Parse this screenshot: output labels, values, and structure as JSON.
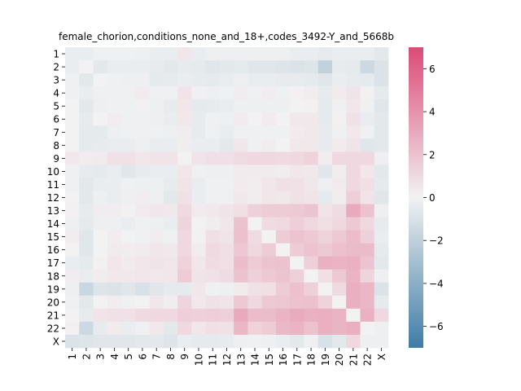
{
  "chart_data": {
    "type": "heatmap",
    "title": "female_chorion,conditions_none_and_18+,codes_3492-Y_and_5668b",
    "xlabel": "",
    "ylabel": "",
    "row_labels": [
      "1",
      "2",
      "3",
      "4",
      "5",
      "6",
      "7",
      "8",
      "9",
      "10",
      "11",
      "12",
      "13",
      "14",
      "15",
      "16",
      "17",
      "18",
      "19",
      "20",
      "21",
      "22",
      "X"
    ],
    "col_labels": [
      "1",
      "2",
      "3",
      "4",
      "5",
      "6",
      "7",
      "8",
      "9",
      "10",
      "11",
      "12",
      "13",
      "14",
      "15",
      "16",
      "17",
      "18",
      "19",
      "20",
      "21",
      "22",
      "X"
    ],
    "values": [
      [
        -0.3,
        -0.3,
        -0.1,
        -0.1,
        -0.1,
        -0.2,
        -0.3,
        -0.3,
        0.5,
        -0.3,
        -0.2,
        -0.2,
        -0.2,
        -0.2,
        -0.2,
        -0.2,
        -0.3,
        -0.3,
        -0.4,
        -0.3,
        -0.3,
        -0.3,
        -0.6
      ],
      [
        -0.3,
        0.0,
        -0.6,
        -0.3,
        -0.3,
        -0.3,
        -0.4,
        -0.6,
        -0.4,
        -0.5,
        -0.7,
        -0.6,
        -0.5,
        -0.7,
        -0.7,
        -0.8,
        -0.9,
        -0.8,
        -1.9,
        -0.4,
        -0.5,
        -1.5,
        -0.9
      ],
      [
        -0.1,
        -0.6,
        0.0,
        -0.1,
        -0.2,
        -0.2,
        -0.5,
        -0.4,
        -0.3,
        -0.4,
        -0.5,
        -0.3,
        -0.2,
        -0.3,
        -0.3,
        -0.4,
        -0.4,
        -0.5,
        -0.7,
        -0.3,
        -0.4,
        -0.5,
        -0.9
      ],
      [
        -0.1,
        -0.3,
        -0.1,
        -0.1,
        -0.1,
        0.3,
        -0.1,
        -0.1,
        0.6,
        -0.1,
        -0.2,
        -0.1,
        0.2,
        -0.1,
        0.2,
        -0.1,
        0.1,
        0.2,
        -0.4,
        0.3,
        0.6,
        0.1,
        -0.5
      ],
      [
        0.0,
        -0.6,
        -0.2,
        -0.1,
        -0.1,
        0.1,
        -0.2,
        -0.4,
        0.5,
        -0.5,
        -0.4,
        -0.3,
        -0.2,
        -0.2,
        -0.2,
        -0.2,
        0.0,
        0.1,
        -0.5,
        -0.1,
        0.5,
        -0.1,
        -0.7
      ],
      [
        0.0,
        -0.4,
        0.0,
        0.2,
        -0.1,
        -0.1,
        -0.2,
        -0.3,
        0.4,
        -0.4,
        -0.1,
        -0.2,
        0.3,
        0.0,
        0.3,
        0.0,
        0.4,
        0.4,
        -0.5,
        0.1,
        0.7,
        -0.3,
        -0.6
      ],
      [
        0.0,
        -0.5,
        -0.5,
        -0.2,
        -0.1,
        -0.1,
        -0.1,
        -0.2,
        0.2,
        -0.4,
        -0.1,
        -0.3,
        -0.1,
        -0.1,
        -0.1,
        -0.1,
        0.3,
        0.4,
        -0.4,
        -0.1,
        0.4,
        -0.1,
        -0.6
      ],
      [
        0.0,
        -0.5,
        -0.4,
        -0.3,
        -0.3,
        -0.2,
        -0.3,
        -0.3,
        0.2,
        -0.3,
        -0.3,
        -0.6,
        0.5,
        -0.1,
        0.2,
        0.0,
        0.4,
        0.4,
        -0.4,
        0.3,
        0.6,
        -0.7,
        -0.6
      ],
      [
        0.4,
        0.2,
        0.3,
        0.7,
        0.7,
        0.5,
        0.6,
        0.6,
        0.0,
        0.6,
        0.8,
        0.8,
        0.9,
        1.1,
        1.1,
        1.0,
        1.1,
        1.3,
        0.2,
        1.1,
        1.1,
        1.1,
        -0.2
      ],
      [
        -0.1,
        -0.4,
        -0.5,
        -0.3,
        -0.7,
        -0.4,
        -0.3,
        -0.3,
        0.5,
        -0.1,
        -0.2,
        -0.2,
        0.3,
        0.3,
        0.3,
        0.2,
        0.5,
        0.4,
        -0.7,
        0.2,
        1.1,
        0.5,
        -0.6
      ],
      [
        -0.1,
        -0.6,
        -0.3,
        -0.3,
        -0.1,
        -0.2,
        -0.2,
        -0.4,
        0.6,
        -0.3,
        -0.1,
        -0.1,
        0.3,
        0.2,
        0.5,
        0.8,
        0.7,
        0.5,
        -0.2,
        0.3,
        1.1,
        0.8,
        -0.5
      ],
      [
        0.0,
        -0.6,
        -0.2,
        -0.3,
        -0.2,
        0.2,
        -0.2,
        -0.6,
        0.7,
        -0.3,
        -0.1,
        -0.1,
        0.4,
        0.2,
        0.5,
        0.4,
        0.7,
        0.6,
        -0.5,
        0.2,
        1.5,
        0.6,
        -0.7
      ],
      [
        0.1,
        -0.4,
        0.2,
        0.2,
        0.1,
        0.3,
        0.5,
        0.4,
        1.0,
        0.3,
        0.4,
        0.6,
        0.8,
        1.4,
        1.6,
        1.6,
        1.7,
        1.9,
        0.6,
        0.9,
        3.0,
        2.0,
        -0.2
      ],
      [
        -0.2,
        -0.5,
        -0.2,
        -0.2,
        -0.3,
        -0.1,
        -0.2,
        -0.3,
        1.2,
        0.0,
        0.2,
        0.5,
        2.0,
        0.0,
        0.9,
        1.0,
        1.5,
        1.1,
        0.8,
        1.1,
        1.7,
        1.1,
        -0.4
      ],
      [
        0.2,
        -0.7,
        0.0,
        0.2,
        0.0,
        -0.1,
        0.2,
        -0.1,
        1.1,
        0.1,
        0.8,
        0.6,
        2.1,
        0.9,
        0.0,
        1.6,
        1.9,
        1.7,
        1.3,
        1.7,
        2.2,
        1.4,
        -0.3
      ],
      [
        0.0,
        -0.7,
        0.0,
        0.3,
        0.2,
        0.3,
        0.5,
        0.4,
        1.1,
        0.2,
        1.0,
        0.8,
        1.8,
        1.1,
        1.6,
        0.0,
        1.6,
        1.9,
        1.7,
        2.1,
        2.3,
        2.3,
        -0.5
      ],
      [
        -0.3,
        -0.5,
        0.1,
        0.5,
        0.3,
        0.5,
        0.6,
        0.5,
        1.3,
        0.5,
        0.9,
        0.8,
        2.2,
        1.6,
        1.9,
        2.0,
        0.0,
        1.4,
        2.7,
        2.6,
        2.7,
        1.9,
        -0.6
      ],
      [
        0.2,
        -0.3,
        0.2,
        0.4,
        0.4,
        0.5,
        0.4,
        0.5,
        1.6,
        0.6,
        0.7,
        0.9,
        2.0,
        1.4,
        1.7,
        1.9,
        1.4,
        0.0,
        0.8,
        1.7,
        2.6,
        1.2,
        -0.2
      ],
      [
        -0.2,
        -1.6,
        -0.8,
        -0.9,
        -0.7,
        -1.0,
        -0.7,
        -0.5,
        -0.5,
        0.5,
        -0.1,
        -0.2,
        0.3,
        0.7,
        0.8,
        1.6,
        2.1,
        1.4,
        0.0,
        1.0,
        2.8,
        2.5,
        -0.9
      ],
      [
        -0.1,
        -0.6,
        0.0,
        0.2,
        -0.1,
        0.0,
        0.5,
        0.2,
        1.2,
        0.4,
        0.7,
        0.6,
        1.7,
        1.1,
        1.7,
        1.8,
        2.0,
        2.1,
        1.3,
        0.0,
        2.8,
        2.5,
        -0.5
      ],
      [
        0.0,
        -0.4,
        0.6,
        0.7,
        0.7,
        1.0,
        1.1,
        1.1,
        1.5,
        1.4,
        1.5,
        1.4,
        3.0,
        2.2,
        2.2,
        2.6,
        2.9,
        2.7,
        2.8,
        2.6,
        0.0,
        2.7,
        1.1
      ],
      [
        0.1,
        -1.5,
        -0.4,
        0.3,
        -0.3,
        -0.1,
        0.4,
        -0.6,
        1.1,
        0.5,
        0.8,
        0.7,
        2.5,
        1.3,
        1.6,
        2.4,
        2.6,
        2.0,
        2.8,
        2.6,
        2.8,
        0.0,
        -0.2
      ],
      [
        -0.9,
        -0.8,
        -0.7,
        -0.7,
        -0.7,
        -0.6,
        -0.6,
        -0.8,
        -0.3,
        -0.5,
        -0.5,
        -0.4,
        -0.2,
        -0.1,
        -0.2,
        -0.3,
        -0.6,
        -0.1,
        -1.0,
        -0.6,
        1.1,
        -0.2,
        -0.2
      ]
    ],
    "vmin": -7,
    "vmax": 7,
    "colorbar": {
      "ticks": [
        -6,
        -4,
        -2,
        0,
        2,
        4,
        6
      ],
      "tick_labels": [
        "−6",
        "−4",
        "−2",
        "0",
        "2",
        "4",
        "6"
      ],
      "low_color": "#3f7ca6",
      "mid_color": "#f2f2f2",
      "high_color": "#dd4a78"
    },
    "grid": false,
    "legend": "colorbar-right"
  }
}
